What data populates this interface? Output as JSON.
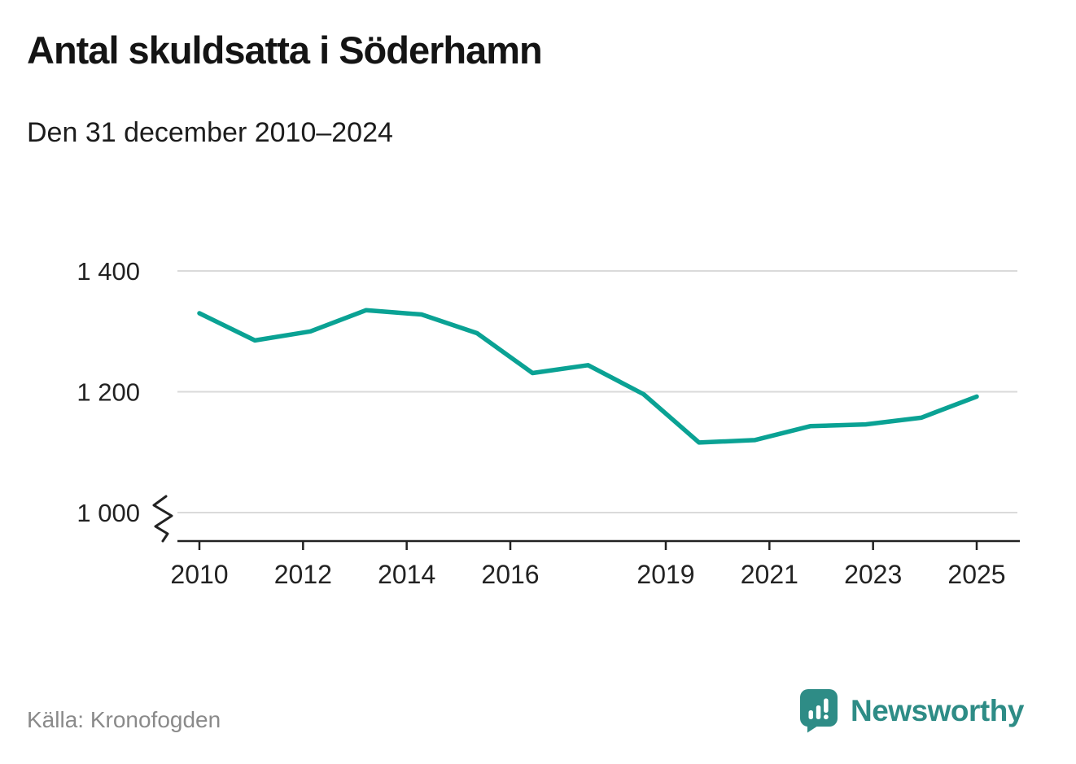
{
  "header": {
    "title": "Antal skuldsatta i Söderhamn",
    "subtitle": "Den 31 december 2010–2024"
  },
  "chart_data": {
    "type": "line",
    "title": "Antal skuldsatta i Söderhamn",
    "subtitle": "Den 31 december 2010–2024",
    "x": [
      2010,
      2011,
      2012,
      2013,
      2014,
      2015,
      2016,
      2017,
      2018,
      2019,
      2020,
      2021,
      2022,
      2023,
      2024
    ],
    "series": [
      {
        "name": "Antal skuldsatta",
        "values": [
          1330,
          1285,
          1300,
          1335,
          1328,
          1297,
          1231,
          1244,
          1196,
          1116,
          1120,
          1143,
          1146,
          1157,
          1192
        ]
      }
    ],
    "line_color": "#0aa294",
    "grid": true,
    "gridline_color": "#dadada",
    "axis_color": "#222222",
    "label_color": "#222222",
    "yticks": {
      "values": [
        1400,
        1200,
        1000
      ],
      "labels": [
        "1 400",
        "1 200",
        "1 000"
      ]
    },
    "xticks": {
      "values": [
        2010,
        2012,
        2014,
        2016,
        2019,
        2021,
        2023,
        2025
      ],
      "labels": [
        "2010",
        "2012",
        "2014",
        "2016",
        "2019",
        "2021",
        "2023",
        "2025"
      ]
    },
    "ylim": [
      975,
      1430
    ],
    "xlim": [
      2010,
      2025.8
    ],
    "axis_break": true,
    "legend": "none"
  },
  "footer": {
    "source": "Källa: Kronofogden",
    "brand": "Newsworthy",
    "brand_color": "#2e8c86"
  }
}
